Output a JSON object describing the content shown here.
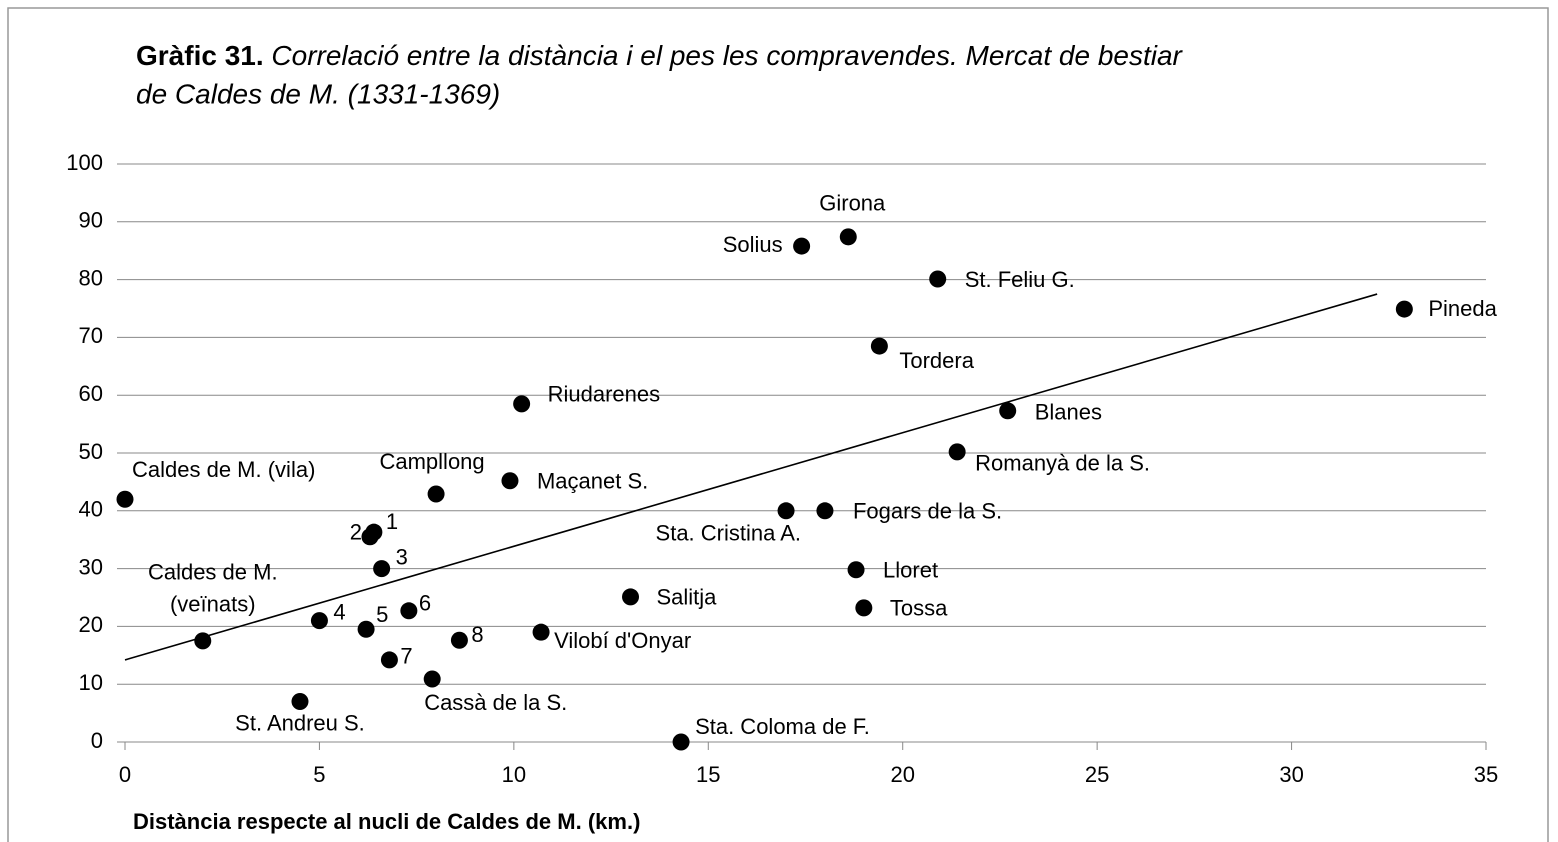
{
  "chart_data": {
    "type": "scatter",
    "title_label": "Gràfic 31.",
    "title": [
      "Correlació entre la distància i el pes les compravendes. Mercat de bestiar",
      "de Caldes de M. (1331-1369)"
    ],
    "x_label": "Distància respecte al nucli de Caldes de M. (km.)",
    "x": [
      0,
      2.0,
      4.5,
      5.0,
      6.2,
      6.3,
      6.4,
      6.6,
      6.8,
      7.3,
      7.9,
      8.0,
      8.6,
      9.9,
      10.2,
      10.7,
      13.0,
      14.3,
      17.0,
      17.4,
      18.0,
      18.6,
      18.8,
      19.0,
      19.4,
      20.9,
      21.4,
      22.7,
      32.9
    ],
    "values": [
      42,
      17.5,
      7,
      21,
      19.5,
      35.5,
      36.3,
      30,
      14.2,
      22.7,
      10.9,
      42.9,
      17.6,
      45.2,
      58.5,
      19,
      25.1,
      0,
      40,
      85.8,
      40,
      87.4,
      29.8,
      23.2,
      68.5,
      80.1,
      50.2,
      57.3,
      74.9
    ],
    "labels": [
      "Caldes de M. (vila)",
      [
        "Caldes de M.",
        "(veïnats)"
      ],
      "St. Andreu S.",
      "4",
      "5",
      "2",
      "1",
      "3",
      "7",
      "6",
      "Cassà de la S.",
      "Campllong",
      "8",
      "Maçanet S.",
      "Riudarenes",
      "Vilobí d'Onyar",
      "Salitja",
      "Sta. Coloma de F.",
      "Sta. Cristina A.",
      "Solius",
      "Fogars de la S.",
      "Girona",
      "Lloret",
      "Tossa",
      "Tordera",
      "St. Feliu G.",
      "Romanyà de la S.",
      "Blanes",
      "Pineda"
    ],
    "color": "#000000",
    "trendline": {
      "x": [
        0,
        32.2
      ],
      "y": [
        14.2,
        77.5
      ]
    },
    "xlim": [
      0,
      35
    ],
    "xticks": [
      0,
      5,
      10,
      15,
      20,
      25,
      30,
      35
    ],
    "ylim": [
      0,
      100
    ],
    "yticks": [
      0,
      10,
      20,
      30,
      40,
      50,
      60,
      70,
      80,
      90,
      100
    ],
    "grid": true
  }
}
